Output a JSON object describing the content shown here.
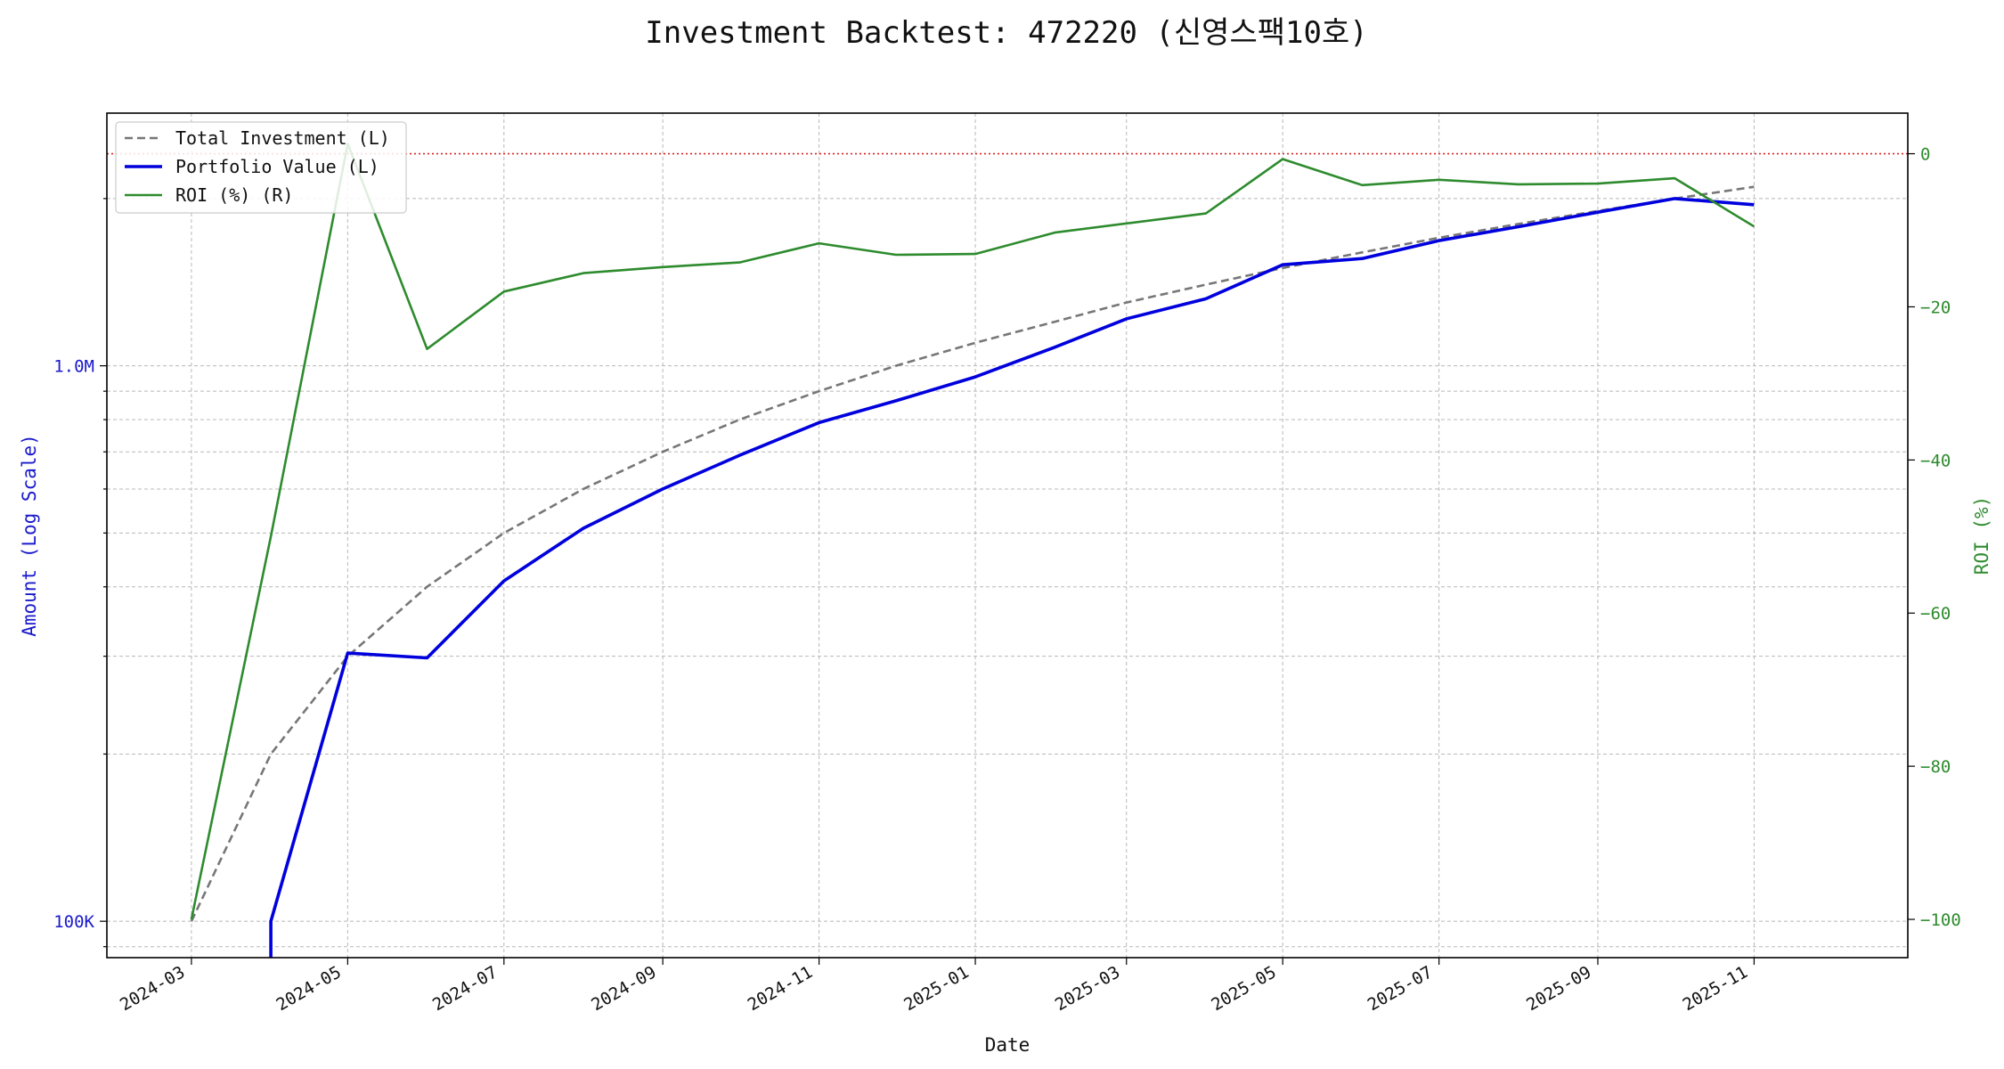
{
  "chart_data": {
    "type": "line",
    "title": "Investment Backtest: 472220 (신영스팩10호)",
    "xlabel": "Date",
    "ylabel_left": "Amount (Log Scale)",
    "ylabel_right": "ROI (%)",
    "left_axis_scale": "log",
    "grid": true,
    "legend_position": "top-left",
    "colors": {
      "total_investment": "#777777",
      "portfolio_value": "#0000dd",
      "roi": "#2e8b2e",
      "left_axis": "#1a1acc",
      "right_axis": "#2e8b2e",
      "zero_line": "#dd2222"
    },
    "x_tick_labels": [
      "2024-03",
      "2024-05",
      "2024-07",
      "2024-09",
      "2024-11",
      "2025-01",
      "2025-03",
      "2025-05",
      "2025-07",
      "2025-09",
      "2025-11"
    ],
    "x_dates": [
      "2024-03-01",
      "2024-04-01",
      "2024-05-01",
      "2024-06-01",
      "2024-07-01",
      "2024-08-01",
      "2024-09-01",
      "2024-10-01",
      "2024-11-01",
      "2024-12-01",
      "2025-01-01",
      "2025-02-01",
      "2025-03-01",
      "2025-04-01",
      "2025-05-01",
      "2025-06-01",
      "2025-07-01",
      "2025-08-01",
      "2025-09-01",
      "2025-10-01",
      "2025-11-01"
    ],
    "x_range": [
      "2024-01-28",
      "2025-12-31"
    ],
    "left_ylim": [
      86000,
      2850000
    ],
    "left_tick_labels": [
      "100K",
      "1.0M"
    ],
    "left_tick_values": [
      100000,
      1000000
    ],
    "right_ylim": [
      -105,
      5.3
    ],
    "right_tick_values": [
      0,
      -20,
      -40,
      -60,
      -80,
      -100
    ],
    "roi_reference_line": 0,
    "series": [
      {
        "name": "Total Investment (L)",
        "axis": "left",
        "style": "dashed",
        "values": [
          100000,
          200000,
          300000,
          400000,
          500000,
          600000,
          700000,
          800000,
          900000,
          1000000,
          1100000,
          1200000,
          1300000,
          1400000,
          1500000,
          1600000,
          1700000,
          1800000,
          1900000,
          2000000,
          2100000
        ]
      },
      {
        "name": "Portfolio Value (L)",
        "axis": "left",
        "style": "solid",
        "start_date": "2024-04-01",
        "values": [
          100000,
          304000,
          298000,
          410000,
          510000,
          600000,
          690000,
          790000,
          865000,
          955000,
          1080000,
          1215000,
          1320000,
          1520000,
          1560000,
          1680000,
          1780000,
          1890000,
          2000000,
          1950000
        ]
      },
      {
        "name": "ROI (%) (R)",
        "axis": "right",
        "style": "solid",
        "values": [
          -100,
          -50,
          1.3,
          -25.5,
          -18,
          -15.6,
          -14.8,
          -14.2,
          -11.7,
          -13.2,
          -13.1,
          -10.3,
          -9.1,
          -7.8,
          -0.7,
          -4.1,
          -3.4,
          -4,
          -3.9,
          -3.2,
          -9.5
        ]
      }
    ]
  }
}
